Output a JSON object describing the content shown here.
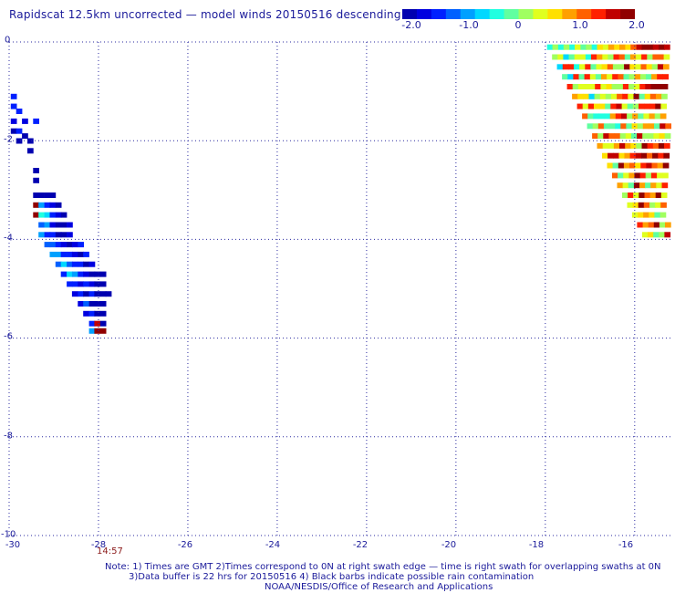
{
  "title": "Rapidscat 12.5km uncorrected — model winds 20150516 descending",
  "colorbar": {
    "labels": [
      "-2.0",
      "-1.0",
      "0",
      "1.0",
      "2.0"
    ],
    "colors": [
      "#0000b0",
      "#0000e0",
      "#0020ff",
      "#0060ff",
      "#00a0ff",
      "#00d8ff",
      "#20ffe0",
      "#60ffa0",
      "#a0ff60",
      "#e0ff20",
      "#ffe000",
      "#ffa000",
      "#ff6000",
      "#ff2000",
      "#c00000",
      "#900000"
    ]
  },
  "axes": {
    "y_ticks": [
      "0",
      "-2",
      "-4",
      "-6",
      "-8",
      "-10"
    ],
    "x_ticks": [
      "-30",
      "-28",
      "-26",
      "-24",
      "-22",
      "-20",
      "-18",
      "-16"
    ]
  },
  "time_label": "14:57",
  "notes": [
    "Note: 1) Times are GMT 2)Times correspond to 0N at right swath edge — time is right swath for overlapping swaths at 0N",
    "3)Data buffer is 22 hrs for 20150516 4) Black barbs indicate possible rain contamination",
    "NOAA/NESDIS/Office of Research and Applications"
  ],
  "chart_data": {
    "type": "heatmap",
    "title": "Rapidscat 12.5km uncorrected — model winds 20150516 descending",
    "xlim": [
      -30,
      -15.2
    ],
    "ylim": [
      -10,
      0
    ],
    "x_ticks": [
      -30,
      -28,
      -26,
      -24,
      -22,
      -20,
      -18,
      -16
    ],
    "y_ticks": [
      0,
      -2,
      -4,
      -6,
      -8,
      -10
    ],
    "color_range": [
      -2.0,
      2.0
    ],
    "cell_size_deg": 0.125,
    "swaths": [
      {
        "region": "west",
        "cells": [
          {
            "lon": -29.9,
            "lat": -1.1,
            "v": -1.3
          },
          {
            "lon": -29.9,
            "lat": -1.3,
            "v": -1.5
          },
          {
            "lon": -29.78,
            "lat": -1.4,
            "v": -1.4
          },
          {
            "lon": -29.9,
            "lat": -1.6,
            "v": -1.6
          },
          {
            "lon": -29.65,
            "lat": -1.6,
            "v": -1.7
          },
          {
            "lon": -29.4,
            "lat": -1.6,
            "v": -1.3
          },
          {
            "lon": -29.9,
            "lat": -1.8,
            "v": -1.9
          },
          {
            "lon": -29.78,
            "lat": -1.8,
            "v": -1.5
          },
          {
            "lon": -29.65,
            "lat": -1.9,
            "v": -1.8
          },
          {
            "lon": -29.78,
            "lat": -2.0,
            "v": -1.9
          },
          {
            "lon": -29.53,
            "lat": -2.0,
            "v": -1.9
          },
          {
            "lon": -29.53,
            "lat": -2.2,
            "v": -2.0
          },
          {
            "lon": -29.4,
            "lat": -2.6,
            "v": -2.0
          },
          {
            "lon": -29.4,
            "lat": -2.8,
            "v": -2.0
          },
          {
            "lon": -29.4,
            "lat": -3.1,
            "v": -2.0
          },
          {
            "lon": -29.28,
            "lat": -3.1,
            "v": -1.8
          },
          {
            "lon": -29.15,
            "lat": -3.1,
            "v": -1.9
          },
          {
            "lon": -29.03,
            "lat": -3.1,
            "v": -1.8
          },
          {
            "lon": -29.4,
            "lat": -3.3,
            "v": 2.0
          },
          {
            "lon": -29.28,
            "lat": -3.3,
            "v": -1.0
          },
          {
            "lon": -29.15,
            "lat": -3.3,
            "v": -1.5
          },
          {
            "lon": -29.03,
            "lat": -3.3,
            "v": -1.7
          },
          {
            "lon": -28.9,
            "lat": -3.3,
            "v": -1.9
          },
          {
            "lon": -29.4,
            "lat": -3.5,
            "v": 2.0
          },
          {
            "lon": -29.28,
            "lat": -3.5,
            "v": -0.4
          },
          {
            "lon": -29.15,
            "lat": -3.5,
            "v": -0.7
          },
          {
            "lon": -29.03,
            "lat": -3.5,
            "v": -1.4
          },
          {
            "lon": -28.9,
            "lat": -3.5,
            "v": -1.7
          },
          {
            "lon": -28.78,
            "lat": -3.5,
            "v": -1.8
          },
          {
            "lon": -29.28,
            "lat": -3.7,
            "v": -1.2
          },
          {
            "lon": -29.15,
            "lat": -3.7,
            "v": -0.9
          },
          {
            "lon": -29.03,
            "lat": -3.7,
            "v": -1.6
          },
          {
            "lon": -28.9,
            "lat": -3.7,
            "v": -1.9
          },
          {
            "lon": -28.78,
            "lat": -3.7,
            "v": -1.9
          },
          {
            "lon": -28.65,
            "lat": -3.7,
            "v": -1.7
          },
          {
            "lon": -29.28,
            "lat": -3.9,
            "v": -0.8
          },
          {
            "lon": -29.15,
            "lat": -3.9,
            "v": -1.3
          },
          {
            "lon": -29.03,
            "lat": -3.9,
            "v": -1.5
          },
          {
            "lon": -28.9,
            "lat": -3.9,
            "v": -1.9
          },
          {
            "lon": -28.78,
            "lat": -3.9,
            "v": -1.8
          },
          {
            "lon": -28.65,
            "lat": -3.9,
            "v": -1.6
          },
          {
            "lon": -29.15,
            "lat": -4.1,
            "v": -1.1
          },
          {
            "lon": -29.03,
            "lat": -4.1,
            "v": -1.2
          },
          {
            "lon": -28.9,
            "lat": -4.1,
            "v": -1.4
          },
          {
            "lon": -28.78,
            "lat": -4.1,
            "v": -1.6
          },
          {
            "lon": -28.65,
            "lat": -4.1,
            "v": -1.9
          },
          {
            "lon": -28.53,
            "lat": -4.1,
            "v": -1.7
          },
          {
            "lon": -28.4,
            "lat": -4.1,
            "v": -1.3
          },
          {
            "lon": -29.03,
            "lat": -4.3,
            "v": -1.0
          },
          {
            "lon": -28.9,
            "lat": -4.3,
            "v": -0.8
          },
          {
            "lon": -28.78,
            "lat": -4.3,
            "v": -1.5
          },
          {
            "lon": -28.65,
            "lat": -4.3,
            "v": -1.3
          },
          {
            "lon": -28.53,
            "lat": -4.3,
            "v": -1.6
          },
          {
            "lon": -28.4,
            "lat": -4.3,
            "v": -1.8
          },
          {
            "lon": -28.28,
            "lat": -4.3,
            "v": -1.5
          },
          {
            "lon": -28.9,
            "lat": -4.5,
            "v": -1.2
          },
          {
            "lon": -28.78,
            "lat": -4.5,
            "v": -0.7
          },
          {
            "lon": -28.65,
            "lat": -4.5,
            "v": -1.1
          },
          {
            "lon": -28.53,
            "lat": -4.5,
            "v": -1.4
          },
          {
            "lon": -28.4,
            "lat": -4.5,
            "v": -1.5
          },
          {
            "lon": -28.28,
            "lat": -4.5,
            "v": -1.9
          },
          {
            "lon": -28.15,
            "lat": -4.5,
            "v": -1.7
          },
          {
            "lon": -28.78,
            "lat": -4.7,
            "v": -1.4
          },
          {
            "lon": -28.65,
            "lat": -4.7,
            "v": -0.6
          },
          {
            "lon": -28.53,
            "lat": -4.7,
            "v": -0.9
          },
          {
            "lon": -28.4,
            "lat": -4.7,
            "v": -1.3
          },
          {
            "lon": -28.28,
            "lat": -4.7,
            "v": -1.6
          },
          {
            "lon": -28.15,
            "lat": -4.7,
            "v": -1.8
          },
          {
            "lon": -28.03,
            "lat": -4.7,
            "v": -1.9
          },
          {
            "lon": -27.9,
            "lat": -4.7,
            "v": -2.0
          },
          {
            "lon": -28.65,
            "lat": -4.9,
            "v": -1.3
          },
          {
            "lon": -28.53,
            "lat": -4.9,
            "v": -1.5
          },
          {
            "lon": -28.4,
            "lat": -4.9,
            "v": -1.7
          },
          {
            "lon": -28.28,
            "lat": -4.9,
            "v": -1.4
          },
          {
            "lon": -28.15,
            "lat": -4.9,
            "v": -1.6
          },
          {
            "lon": -28.03,
            "lat": -4.9,
            "v": -1.9
          },
          {
            "lon": -27.9,
            "lat": -4.9,
            "v": -2.0
          },
          {
            "lon": -28.53,
            "lat": -5.1,
            "v": -1.6
          },
          {
            "lon": -28.4,
            "lat": -5.1,
            "v": -1.3
          },
          {
            "lon": -28.28,
            "lat": -5.1,
            "v": -1.8
          },
          {
            "lon": -28.15,
            "lat": -5.1,
            "v": -1.5
          },
          {
            "lon": -28.03,
            "lat": -5.1,
            "v": -1.9
          },
          {
            "lon": -27.9,
            "lat": -5.1,
            "v": -2.0
          },
          {
            "lon": -27.78,
            "lat": -5.1,
            "v": -1.9
          },
          {
            "lon": -28.4,
            "lat": -5.3,
            "v": -1.7
          },
          {
            "lon": -28.28,
            "lat": -5.3,
            "v": -1.2
          },
          {
            "lon": -28.15,
            "lat": -5.3,
            "v": -1.8
          },
          {
            "lon": -28.03,
            "lat": -5.3,
            "v": -2.0
          },
          {
            "lon": -27.9,
            "lat": -5.3,
            "v": -2.0
          },
          {
            "lon": -28.28,
            "lat": -5.5,
            "v": -1.6
          },
          {
            "lon": -28.15,
            "lat": -5.5,
            "v": -1.4
          },
          {
            "lon": -28.03,
            "lat": -5.5,
            "v": -1.9
          },
          {
            "lon": -27.9,
            "lat": -5.5,
            "v": -2.0
          },
          {
            "lon": -28.15,
            "lat": -5.7,
            "v": -1.5
          },
          {
            "lon": -28.03,
            "lat": -5.7,
            "v": 1.6
          },
          {
            "lon": -27.9,
            "lat": -5.7,
            "v": -1.8
          },
          {
            "lon": -28.15,
            "lat": -5.85,
            "v": -0.9
          },
          {
            "lon": -28.03,
            "lat": -5.85,
            "v": 2.0
          },
          {
            "lon": -27.9,
            "lat": -5.85,
            "v": 2.0
          }
        ]
      },
      {
        "region": "east",
        "cells": [
          {
            "lon": -17.9,
            "lat": -0.1,
            "v": -0.3
          },
          {
            "lon": -17.78,
            "lat": -0.1,
            "v": 0.0
          },
          {
            "lon": -17.65,
            "lat": -0.1,
            "v": -0.5
          },
          {
            "lon": -17.53,
            "lat": -0.1,
            "v": 0.2
          },
          {
            "lon": -17.4,
            "lat": -0.1,
            "v": -0.4
          },
          {
            "lon": -17.28,
            "lat": -0.1,
            "v": 0.4
          },
          {
            "lon": -17.15,
            "lat": -0.1,
            "v": -0.2
          },
          {
            "lon": -17.03,
            "lat": -0.1,
            "v": 0.1
          },
          {
            "lon": -16.9,
            "lat": -0.1,
            "v": -0.3
          },
          {
            "lon": -16.78,
            "lat": -0.1,
            "v": 0.6
          },
          {
            "lon": -16.65,
            "lat": -0.1,
            "v": 0.3
          },
          {
            "lon": -16.53,
            "lat": -0.1,
            "v": 0.8
          },
          {
            "lon": -16.4,
            "lat": -0.1,
            "v": 0.5
          },
          {
            "lon": -16.28,
            "lat": -0.1,
            "v": 0.9
          },
          {
            "lon": -16.15,
            "lat": -0.1,
            "v": 0.7
          },
          {
            "lon": -16.03,
            "lat": -0.1,
            "v": 1.1
          },
          {
            "lon": -15.9,
            "lat": -0.1,
            "v": 1.5
          },
          {
            "lon": -15.78,
            "lat": -0.1,
            "v": 1.8
          },
          {
            "lon": -15.65,
            "lat": -0.1,
            "v": 1.9
          },
          {
            "lon": -15.53,
            "lat": -0.1,
            "v": 1.6
          },
          {
            "lon": -15.4,
            "lat": -0.1,
            "v": 1.9
          },
          {
            "lon": -15.28,
            "lat": -0.1,
            "v": 1.7
          }
        ]
      }
    ]
  }
}
